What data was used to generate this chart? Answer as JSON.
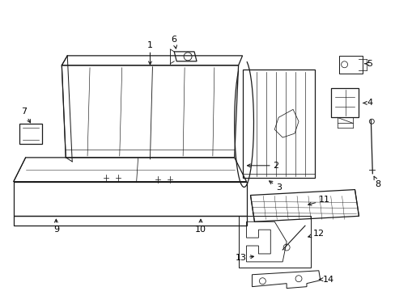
{
  "background_color": "#ffffff",
  "line_color": "#1a1a1a",
  "label_color": "#000000",
  "seat_lw": 0.9,
  "label_fontsize": 8.0
}
